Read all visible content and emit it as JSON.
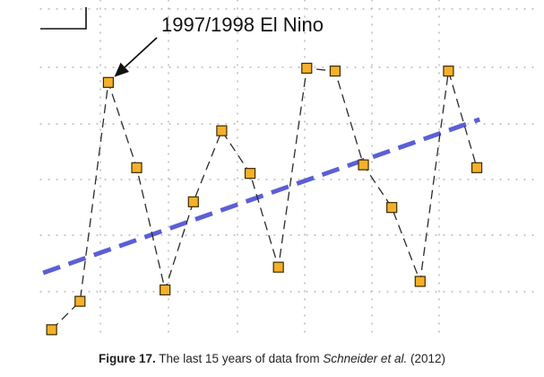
{
  "chart_data": {
    "type": "line",
    "title": "",
    "xlabel": "",
    "ylabel": "",
    "x": [
      1997,
      1998,
      1999,
      2000,
      2001,
      2002,
      2003,
      2004,
      2005,
      2006,
      2007,
      2008,
      2009,
      2010,
      2011,
      2012
    ],
    "xlim": [
      1996.6,
      2013.2
    ],
    "ylim": [
      0,
      6
    ],
    "grid": true,
    "series": [
      {
        "values": [
          0.2,
          0.7,
          4.55,
          3.05,
          0.9,
          2.45,
          3.7,
          2.95,
          1.3,
          4.8,
          4.75,
          3.1,
          2.35,
          1.05,
          4.75,
          3.05
        ],
        "color": "#F5B02A",
        "marker": "square",
        "line_style": "dashed"
      }
    ],
    "trendline": {
      "from": [
        1996.7,
        1.2
      ],
      "to": [
        2012.1,
        3.9
      ],
      "color": "#5B5FD6",
      "line_style": "dashed"
    },
    "annotations": [
      {
        "text": "1997/1998 El Nino",
        "points_to_x": 1999,
        "points_to_y": 4.55
      }
    ]
  },
  "caption": {
    "label": "Figure 17.",
    "text_before": "The last 15 years of data from",
    "italic": "Schneider et al.",
    "text_after": "(2012)"
  }
}
